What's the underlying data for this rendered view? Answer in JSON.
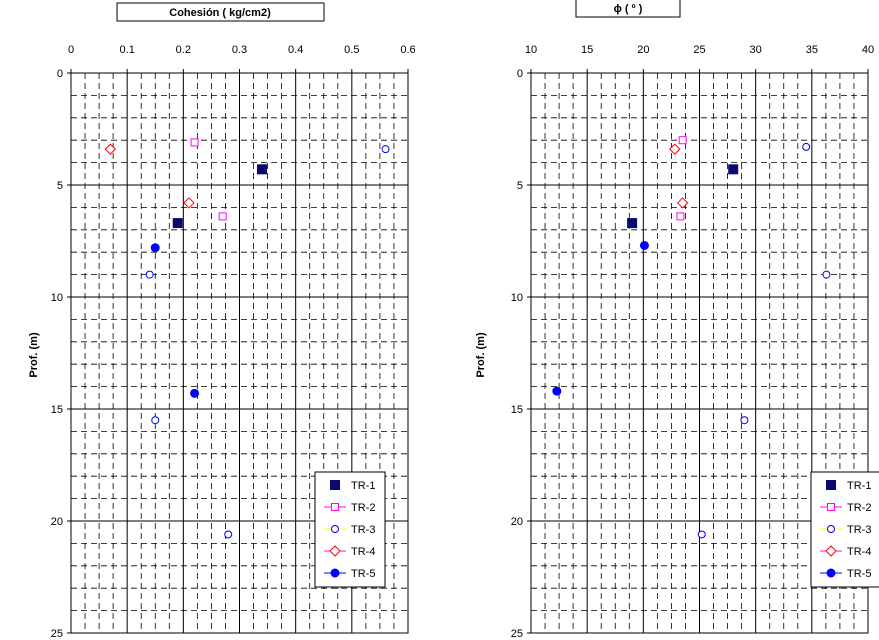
{
  "chart_data": [
    {
      "type": "scatter",
      "title": "Cohesión ( kg/cm2)",
      "xlabel": "",
      "ylabel": "Prof. (m)",
      "x_axis_position": "top",
      "y_inverted": true,
      "xlim": [
        0,
        0.6
      ],
      "ylim": [
        0,
        25
      ],
      "xticks": [
        "0",
        "0.1",
        "0.2",
        "0.3",
        "0.4",
        "0.5",
        "0.6"
      ],
      "yticks": [
        "0",
        "5",
        "10",
        "15",
        "20",
        "25"
      ],
      "grid": "dashed minor grid, solid major grid every 5 m and 0.1 units",
      "legend_position": "bottom-right",
      "series": [
        {
          "name": "TR-1",
          "points": [
            [
              0.34,
              4.3
            ],
            [
              0.19,
              6.7
            ]
          ]
        },
        {
          "name": "TR-2",
          "points": [
            [
              0.22,
              3.1
            ],
            [
              0.27,
              6.4
            ]
          ]
        },
        {
          "name": "TR-3",
          "points": [
            [
              0.56,
              3.4
            ],
            [
              0.14,
              9.0
            ],
            [
              0.15,
              15.5
            ],
            [
              0.28,
              20.6
            ]
          ]
        },
        {
          "name": "TR-4",
          "points": [
            [
              0.07,
              3.4
            ],
            [
              0.21,
              5.8
            ]
          ]
        },
        {
          "name": "TR-5",
          "points": [
            [
              0.15,
              7.8
            ],
            [
              0.22,
              14.3
            ]
          ]
        }
      ]
    },
    {
      "type": "scatter",
      "title": "ϕ ( º )",
      "xlabel": "",
      "ylabel": "Prof. (m)",
      "x_axis_position": "top",
      "y_inverted": true,
      "xlim": [
        10,
        40
      ],
      "ylim": [
        0,
        25
      ],
      "xticks": [
        "10",
        "15",
        "20",
        "25",
        "30",
        "35",
        "40"
      ],
      "yticks": [
        "0",
        "5",
        "10",
        "15",
        "20",
        "25"
      ],
      "grid": "dashed minor grid, solid major grid every 5 m and 5 degrees",
      "legend_position": "bottom-right",
      "series": [
        {
          "name": "TR-1",
          "points": [
            [
              28.0,
              4.3
            ],
            [
              19.0,
              6.7
            ]
          ]
        },
        {
          "name": "TR-2",
          "points": [
            [
              23.5,
              3.0
            ],
            [
              23.3,
              6.4
            ]
          ]
        },
        {
          "name": "TR-3",
          "points": [
            [
              34.5,
              3.3
            ],
            [
              36.3,
              9.0
            ],
            [
              29.0,
              15.5
            ],
            [
              25.2,
              20.6
            ]
          ]
        },
        {
          "name": "TR-4",
          "points": [
            [
              22.8,
              3.4
            ],
            [
              23.5,
              5.8
            ]
          ]
        },
        {
          "name": "TR-5",
          "points": [
            [
              12.3,
              14.2
            ],
            [
              20.1,
              7.7
            ]
          ]
        }
      ]
    }
  ],
  "series_styles": {
    "TR-1": {
      "marker": "filled-square",
      "color": "#0a0a6e"
    },
    "TR-2": {
      "marker": "hollow-square",
      "color": "#ff00ff"
    },
    "TR-3": {
      "marker": "hollow-circle",
      "color": "#0000ff"
    },
    "TR-4": {
      "marker": "hollow-diamond",
      "color": "#ff0000"
    },
    "TR-5": {
      "marker": "filled-circle",
      "color": "#0000ff"
    }
  },
  "legend_lines": {
    "TR-2": "#ff00ff",
    "TR-3": "#ffff00",
    "TR-4": "#ff00ff",
    "TR-5": "#0000ff"
  }
}
